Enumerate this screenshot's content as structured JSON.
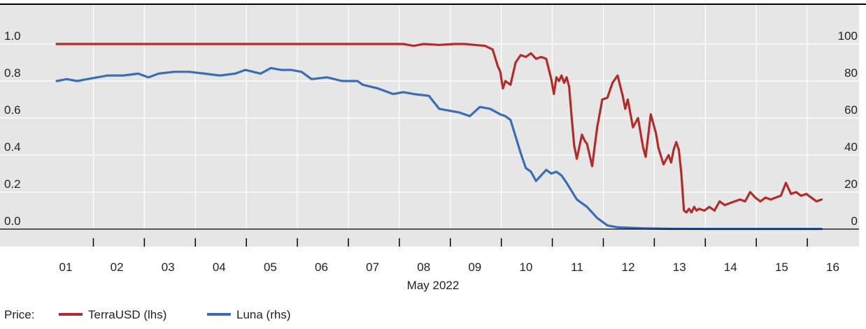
{
  "chart_data": {
    "type": "line",
    "xlabel": "May 2022",
    "x_ticks": [
      "01",
      "02",
      "03",
      "04",
      "05",
      "06",
      "07",
      "08",
      "09",
      "10",
      "11",
      "12",
      "13",
      "14",
      "15",
      "16"
    ],
    "y_left": {
      "ticks": [
        "1.0",
        "0.8",
        "0.6",
        "0.4",
        "0.2",
        "0.0"
      ],
      "ylim": [
        0,
        1.0
      ]
    },
    "y_right": {
      "ticks": [
        "100",
        "80",
        "60",
        "40",
        "20",
        "0"
      ],
      "ylim": [
        0,
        100
      ]
    },
    "grid": true,
    "legend": {
      "prefix": "Price:",
      "placement": "bottom-left"
    },
    "colors": {
      "terrausd": "#b22c2c",
      "luna": "#3a6db5",
      "plot_bg": "#e6e6e6",
      "grid": "#ffffff"
    },
    "series": [
      {
        "name": "TerraUSD (lhs)",
        "axis": "left",
        "x": [
          0.0,
          1.0,
          2.0,
          3.0,
          4.0,
          5.0,
          6.0,
          6.8,
          7.0,
          7.2,
          7.5,
          7.8,
          8.0,
          8.2,
          8.4,
          8.55,
          8.65,
          8.7,
          8.75,
          8.8,
          8.9,
          9.0,
          9.1,
          9.2,
          9.3,
          9.4,
          9.5,
          9.6,
          9.7,
          9.75,
          9.8,
          9.85,
          9.9,
          9.95,
          10.0,
          10.05,
          10.1,
          10.15,
          10.2,
          10.3,
          10.35,
          10.4,
          10.5,
          10.6,
          10.7,
          10.8,
          10.9,
          11.0,
          11.1,
          11.15,
          11.2,
          11.3,
          11.4,
          11.5,
          11.55,
          11.65,
          11.75,
          11.8,
          11.9,
          12.0,
          12.05,
          12.1,
          12.15,
          12.2,
          12.25,
          12.3,
          12.35,
          12.4,
          12.45,
          12.5,
          12.55,
          12.6,
          12.7,
          12.8,
          12.9,
          13.0,
          13.1,
          13.2,
          13.3,
          13.4,
          13.5,
          13.6,
          13.7,
          13.8,
          13.9,
          14.0,
          14.1,
          14.2,
          14.3,
          14.4,
          14.5,
          14.6,
          14.7,
          14.8,
          14.9,
          15.0
        ],
        "values": [
          1.0,
          1.0,
          1.0,
          1.0,
          1.0,
          1.0,
          1.0,
          1.0,
          0.99,
          1.0,
          0.995,
          1.0,
          1.0,
          0.995,
          0.99,
          0.97,
          0.88,
          0.85,
          0.76,
          0.8,
          0.78,
          0.9,
          0.94,
          0.93,
          0.95,
          0.92,
          0.93,
          0.92,
          0.81,
          0.73,
          0.82,
          0.8,
          0.83,
          0.79,
          0.82,
          0.77,
          0.6,
          0.45,
          0.38,
          0.51,
          0.48,
          0.46,
          0.34,
          0.55,
          0.7,
          0.71,
          0.79,
          0.83,
          0.72,
          0.65,
          0.7,
          0.55,
          0.6,
          0.44,
          0.39,
          0.62,
          0.52,
          0.44,
          0.35,
          0.4,
          0.36,
          0.43,
          0.47,
          0.43,
          0.3,
          0.1,
          0.09,
          0.11,
          0.09,
          0.12,
          0.1,
          0.11,
          0.1,
          0.12,
          0.1,
          0.15,
          0.13,
          0.14,
          0.15,
          0.16,
          0.15,
          0.2,
          0.17,
          0.15,
          0.17,
          0.16,
          0.17,
          0.18,
          0.25,
          0.19,
          0.2,
          0.18,
          0.19,
          0.17,
          0.15,
          0.16
        ]
      },
      {
        "name": "Luna (rhs)",
        "axis": "right",
        "x": [
          0.0,
          0.2,
          0.4,
          0.6,
          0.8,
          1.0,
          1.3,
          1.6,
          1.8,
          2.0,
          2.3,
          2.6,
          2.9,
          3.2,
          3.5,
          3.7,
          4.0,
          4.2,
          4.4,
          4.6,
          4.8,
          5.0,
          5.3,
          5.6,
          5.9,
          6.0,
          6.3,
          6.6,
          6.8,
          7.0,
          7.3,
          7.5,
          7.7,
          7.9,
          8.1,
          8.3,
          8.5,
          8.7,
          8.8,
          8.9,
          9.0,
          9.1,
          9.2,
          9.3,
          9.4,
          9.6,
          9.7,
          9.8,
          9.9,
          10.0,
          10.2,
          10.4,
          10.6,
          10.8,
          11.0,
          11.5,
          12.0,
          13.0,
          14.0,
          15.0
        ],
        "values": [
          80,
          81,
          80,
          81,
          82,
          83,
          83,
          84,
          82,
          84,
          85,
          85,
          84,
          83,
          84,
          86,
          84,
          87,
          86,
          86,
          85,
          81,
          82,
          80,
          80,
          78,
          76,
          73,
          74,
          73,
          72,
          65,
          64,
          63,
          61,
          66,
          65,
          62,
          61,
          59,
          50,
          41,
          33,
          31,
          26,
          32,
          30,
          31,
          29,
          25,
          16,
          12,
          6,
          2,
          1,
          0.4,
          0.2,
          0.1,
          0.1,
          0.1
        ]
      }
    ]
  }
}
